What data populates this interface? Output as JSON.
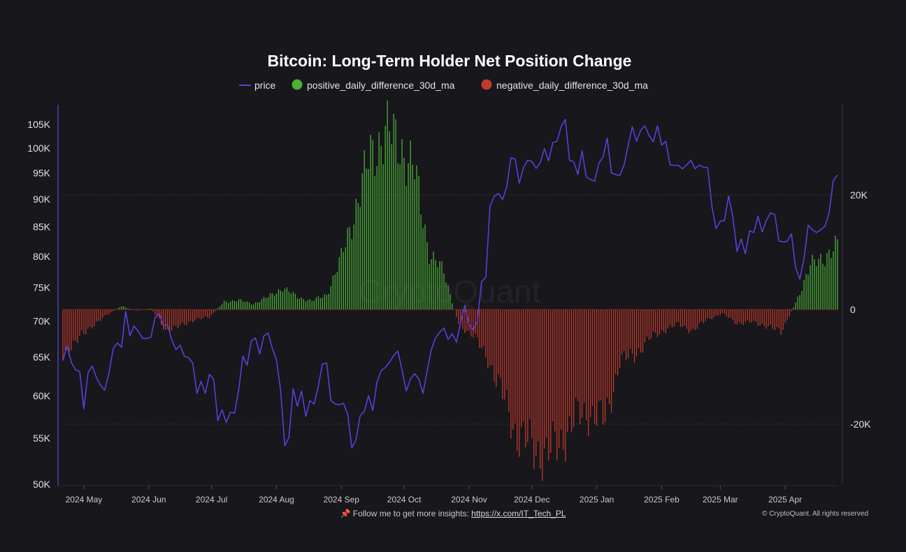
{
  "chart_data": {
    "type": "line+bar",
    "title": "Bitcoin: Long-Term Holder Net Position Change",
    "legend": [
      {
        "name": "price",
        "color": "#5b3fd9",
        "marker": "line"
      },
      {
        "name": "positive_daily_difference_30d_ma",
        "color": "#4caf37",
        "marker": "dot"
      },
      {
        "name": "negative_daily_difference_30d_ma",
        "color": "#c0392b",
        "marker": "dot"
      }
    ],
    "legend_placement": "top-center",
    "y_left": {
      "scale": "log",
      "range": [
        50000,
        110000
      ],
      "ticks": [
        105000,
        100000,
        95000,
        90000,
        85000,
        80000,
        75000,
        70000,
        65000,
        60000,
        55000,
        50000
      ],
      "tick_labels": [
        "105K",
        "100K",
        "95K",
        "90K",
        "85K",
        "80K",
        "75K",
        "70K",
        "65K",
        "60K",
        "55K",
        "50K"
      ]
    },
    "y_right": {
      "scale": "linear",
      "range": [
        -30500,
        33000
      ],
      "ticks": [
        20000,
        0,
        -20000
      ],
      "tick_labels": [
        "20K",
        "0",
        "-20K"
      ]
    },
    "x_axis": {
      "range": [
        "2024-04-21",
        "2025-04-26"
      ],
      "ticks": [
        "2024-05-01",
        "2024-06-01",
        "2024-07-01",
        "2024-08-01",
        "2024-09-01",
        "2024-10-01",
        "2024-11-01",
        "2024-12-01",
        "2025-01-01",
        "2025-02-01",
        "2025-03-01",
        "2025-04-01"
      ],
      "tick_labels": [
        "2024 May",
        "2024 Jun",
        "2024 Jul",
        "2024 Aug",
        "2024 Sep",
        "2024 Oct",
        "2024 Nov",
        "2024 Dec",
        "2025 Jan",
        "2025 Feb",
        "2025 Mar",
        "2025 Apr"
      ]
    },
    "grid": "horizontal dotted at 20K and -20K",
    "price_series": {
      "name": "price",
      "points": [
        [
          "2024-04-21",
          64500
        ],
        [
          "2024-04-23",
          66600
        ],
        [
          "2024-04-25",
          64300
        ],
        [
          "2024-04-27",
          63300
        ],
        [
          "2024-04-29",
          63100
        ],
        [
          "2024-05-01",
          58400
        ],
        [
          "2024-05-03",
          62900
        ],
        [
          "2024-05-05",
          63800
        ],
        [
          "2024-05-07",
          62300
        ],
        [
          "2024-05-09",
          61300
        ],
        [
          "2024-05-11",
          60700
        ],
        [
          "2024-05-13",
          62900
        ],
        [
          "2024-05-15",
          66100
        ],
        [
          "2024-05-17",
          66900
        ],
        [
          "2024-05-19",
          66300
        ],
        [
          "2024-05-21",
          71400
        ],
        [
          "2024-05-23",
          67900
        ],
        [
          "2024-05-25",
          69300
        ],
        [
          "2024-05-27",
          68500
        ],
        [
          "2024-05-29",
          67600
        ],
        [
          "2024-05-31",
          67500
        ],
        [
          "2024-06-02",
          67700
        ],
        [
          "2024-06-04",
          70500
        ],
        [
          "2024-06-06",
          71100
        ],
        [
          "2024-06-08",
          69300
        ],
        [
          "2024-06-10",
          69500
        ],
        [
          "2024-06-12",
          67300
        ],
        [
          "2024-06-14",
          66000
        ],
        [
          "2024-06-16",
          66600
        ],
        [
          "2024-06-18",
          65100
        ],
        [
          "2024-06-20",
          64900
        ],
        [
          "2024-06-22",
          64200
        ],
        [
          "2024-06-24",
          60300
        ],
        [
          "2024-06-26",
          61800
        ],
        [
          "2024-06-28",
          60300
        ],
        [
          "2024-06-30",
          62700
        ],
        [
          "2024-07-02",
          62100
        ],
        [
          "2024-07-04",
          57000
        ],
        [
          "2024-07-06",
          58300
        ],
        [
          "2024-07-08",
          56800
        ],
        [
          "2024-07-10",
          58000
        ],
        [
          "2024-07-12",
          57900
        ],
        [
          "2024-07-14",
          60800
        ],
        [
          "2024-07-16",
          65100
        ],
        [
          "2024-07-18",
          63900
        ],
        [
          "2024-07-20",
          67200
        ],
        [
          "2024-07-22",
          67600
        ],
        [
          "2024-07-24",
          65400
        ],
        [
          "2024-07-26",
          67900
        ],
        [
          "2024-07-28",
          68300
        ],
        [
          "2024-07-30",
          66200
        ],
        [
          "2024-08-01",
          64600
        ],
        [
          "2024-08-03",
          60700
        ],
        [
          "2024-08-05",
          54100
        ],
        [
          "2024-08-07",
          55100
        ],
        [
          "2024-08-09",
          60900
        ],
        [
          "2024-08-11",
          58700
        ],
        [
          "2024-08-13",
          60600
        ],
        [
          "2024-08-15",
          57500
        ],
        [
          "2024-08-17",
          59400
        ],
        [
          "2024-08-19",
          59000
        ],
        [
          "2024-08-21",
          61200
        ],
        [
          "2024-08-23",
          64100
        ],
        [
          "2024-08-25",
          64200
        ],
        [
          "2024-08-27",
          59400
        ],
        [
          "2024-08-29",
          59000
        ],
        [
          "2024-08-31",
          58900
        ],
        [
          "2024-09-02",
          59100
        ],
        [
          "2024-09-04",
          57800
        ],
        [
          "2024-09-06",
          53900
        ],
        [
          "2024-09-08",
          54800
        ],
        [
          "2024-09-10",
          57600
        ],
        [
          "2024-09-12",
          58100
        ],
        [
          "2024-09-14",
          60000
        ],
        [
          "2024-09-16",
          58200
        ],
        [
          "2024-09-18",
          61700
        ],
        [
          "2024-09-20",
          63200
        ],
        [
          "2024-09-22",
          63600
        ],
        [
          "2024-09-24",
          64300
        ],
        [
          "2024-09-26",
          65200
        ],
        [
          "2024-09-28",
          65800
        ],
        [
          "2024-09-30",
          63300
        ],
        [
          "2024-10-02",
          60600
        ],
        [
          "2024-10-04",
          62100
        ],
        [
          "2024-10-06",
          62800
        ],
        [
          "2024-10-08",
          62100
        ],
        [
          "2024-10-10",
          60300
        ],
        [
          "2024-10-12",
          63200
        ],
        [
          "2024-10-14",
          66000
        ],
        [
          "2024-10-16",
          67600
        ],
        [
          "2024-10-18",
          68400
        ],
        [
          "2024-10-20",
          69000
        ],
        [
          "2024-10-22",
          67400
        ],
        [
          "2024-10-24",
          68200
        ],
        [
          "2024-10-26",
          67000
        ],
        [
          "2024-10-28",
          69900
        ],
        [
          "2024-10-30",
          72300
        ],
        [
          "2024-11-01",
          69500
        ],
        [
          "2024-11-03",
          68700
        ],
        [
          "2024-11-05",
          70000
        ],
        [
          "2024-11-07",
          75900
        ],
        [
          "2024-11-09",
          76600
        ],
        [
          "2024-11-11",
          88700
        ],
        [
          "2024-11-13",
          90500
        ],
        [
          "2024-11-15",
          91100
        ],
        [
          "2024-11-17",
          89900
        ],
        [
          "2024-11-19",
          92300
        ],
        [
          "2024-11-21",
          98000
        ],
        [
          "2024-11-23",
          97800
        ],
        [
          "2024-11-25",
          93000
        ],
        [
          "2024-11-27",
          96000
        ],
        [
          "2024-11-29",
          97500
        ],
        [
          "2024-12-01",
          97300
        ],
        [
          "2024-12-03",
          95900
        ],
        [
          "2024-12-05",
          97000
        ],
        [
          "2024-12-07",
          99900
        ],
        [
          "2024-12-09",
          97400
        ],
        [
          "2024-12-11",
          101100
        ],
        [
          "2024-12-13",
          101400
        ],
        [
          "2024-12-15",
          104500
        ],
        [
          "2024-12-17",
          106100
        ],
        [
          "2024-12-19",
          97500
        ],
        [
          "2024-12-21",
          97200
        ],
        [
          "2024-12-23",
          94700
        ],
        [
          "2024-12-25",
          99400
        ],
        [
          "2024-12-27",
          94200
        ],
        [
          "2024-12-29",
          93700
        ],
        [
          "2024-12-31",
          93400
        ],
        [
          "2025-01-02",
          96900
        ],
        [
          "2025-01-04",
          98200
        ],
        [
          "2025-01-06",
          102100
        ],
        [
          "2025-01-08",
          95000
        ],
        [
          "2025-01-10",
          94700
        ],
        [
          "2025-01-12",
          94500
        ],
        [
          "2025-01-14",
          96500
        ],
        [
          "2025-01-16",
          100500
        ],
        [
          "2025-01-18",
          104500
        ],
        [
          "2025-01-20",
          101400
        ],
        [
          "2025-01-22",
          103700
        ],
        [
          "2025-01-24",
          104700
        ],
        [
          "2025-01-26",
          102600
        ],
        [
          "2025-01-28",
          101300
        ],
        [
          "2025-01-30",
          104700
        ],
        [
          "2025-02-01",
          100600
        ],
        [
          "2025-02-03",
          101400
        ],
        [
          "2025-02-05",
          96600
        ],
        [
          "2025-02-07",
          96500
        ],
        [
          "2025-02-09",
          96500
        ],
        [
          "2025-02-11",
          95800
        ],
        [
          "2025-02-13",
          96600
        ],
        [
          "2025-02-15",
          97500
        ],
        [
          "2025-02-17",
          95800
        ],
        [
          "2025-02-19",
          96600
        ],
        [
          "2025-02-21",
          96100
        ],
        [
          "2025-02-23",
          96100
        ],
        [
          "2025-02-25",
          88700
        ],
        [
          "2025-02-27",
          84700
        ],
        [
          "2025-03-01",
          86000
        ],
        [
          "2025-03-03",
          86100
        ],
        [
          "2025-03-05",
          90600
        ],
        [
          "2025-03-07",
          86700
        ],
        [
          "2025-03-09",
          80800
        ],
        [
          "2025-03-11",
          82900
        ],
        [
          "2025-03-13",
          80400
        ],
        [
          "2025-03-15",
          84300
        ],
        [
          "2025-03-17",
          84000
        ],
        [
          "2025-03-19",
          86900
        ],
        [
          "2025-03-21",
          84100
        ],
        [
          "2025-03-23",
          86100
        ],
        [
          "2025-03-25",
          87500
        ],
        [
          "2025-03-27",
          87200
        ],
        [
          "2025-03-29",
          82600
        ],
        [
          "2025-03-31",
          82400
        ],
        [
          "2025-04-02",
          82500
        ],
        [
          "2025-04-04",
          83800
        ],
        [
          "2025-04-06",
          78200
        ],
        [
          "2025-04-08",
          76300
        ],
        [
          "2025-04-10",
          79600
        ],
        [
          "2025-04-12",
          85300
        ],
        [
          "2025-04-14",
          84500
        ],
        [
          "2025-04-16",
          84000
        ],
        [
          "2025-04-18",
          84500
        ],
        [
          "2025-04-20",
          85100
        ],
        [
          "2025-04-22",
          87500
        ],
        [
          "2025-04-24",
          93500
        ],
        [
          "2025-04-26",
          94600
        ]
      ]
    },
    "net_position_series": {
      "name": "positive_daily_difference_30d_ma / negative_daily_difference_30d_ma",
      "points": [
        [
          "2024-04-21",
          -7800
        ],
        [
          "2024-04-28",
          -5400
        ],
        [
          "2024-05-05",
          -2800
        ],
        [
          "2024-05-12",
          -1000
        ],
        [
          "2024-05-19",
          600
        ],
        [
          "2024-05-26",
          -200
        ],
        [
          "2024-06-02",
          200
        ],
        [
          "2024-06-09",
          -3600
        ],
        [
          "2024-06-16",
          -3000
        ],
        [
          "2024-06-23",
          -1700
        ],
        [
          "2024-06-30",
          -1400
        ],
        [
          "2024-07-07",
          1400
        ],
        [
          "2024-07-14",
          1600
        ],
        [
          "2024-07-21",
          1000
        ],
        [
          "2024-07-28",
          2200
        ],
        [
          "2024-08-04",
          3800
        ],
        [
          "2024-08-11",
          2200
        ],
        [
          "2024-08-18",
          1500
        ],
        [
          "2024-08-25",
          2600
        ],
        [
          "2024-09-01",
          9000
        ],
        [
          "2024-09-08",
          18000
        ],
        [
          "2024-09-15",
          27000
        ],
        [
          "2024-09-22",
          31000
        ],
        [
          "2024-09-29",
          29000
        ],
        [
          "2024-10-06",
          24000
        ],
        [
          "2024-10-13",
          10000
        ],
        [
          "2024-10-20",
          6500
        ],
        [
          "2024-10-27",
          -2500
        ],
        [
          "2024-11-03",
          -4600
        ],
        [
          "2024-11-10",
          -8500
        ],
        [
          "2024-11-17",
          -15000
        ],
        [
          "2024-11-24",
          -22000
        ],
        [
          "2024-12-01",
          -24000
        ],
        [
          "2024-12-08",
          -25500
        ],
        [
          "2024-12-15",
          -23000
        ],
        [
          "2024-12-22",
          -19000
        ],
        [
          "2024-12-29",
          -18000
        ],
        [
          "2025-01-05",
          -19500
        ],
        [
          "2025-01-12",
          -9000
        ],
        [
          "2025-01-19",
          -8000
        ],
        [
          "2025-01-26",
          -5200
        ],
        [
          "2025-02-02",
          -3600
        ],
        [
          "2025-02-09",
          -2600
        ],
        [
          "2025-02-16",
          -3700
        ],
        [
          "2025-02-23",
          -1700
        ],
        [
          "2025-03-02",
          -700
        ],
        [
          "2025-03-09",
          -2400
        ],
        [
          "2025-03-16",
          -2200
        ],
        [
          "2025-03-23",
          -2800
        ],
        [
          "2025-03-30",
          -4000
        ],
        [
          "2025-04-06",
          1200
        ],
        [
          "2025-04-13",
          7600
        ],
        [
          "2025-04-20",
          9400
        ],
        [
          "2025-04-26",
          11000
        ]
      ]
    },
    "watermark": "CryptoQuant"
  },
  "footer": {
    "pin_icon": "pushpin-icon",
    "text": "Follow me to get more insights: ",
    "link_text": "https://x.com/IT_Tech_PL",
    "copyright": "© CryptoQuant. All rights reserved"
  },
  "colors": {
    "background": "#17171c",
    "price": "#5b3fd9",
    "positive": "#4caf37",
    "negative": "#c0392b",
    "axis": "#3a3a8a",
    "grid": "#3a3a44"
  }
}
